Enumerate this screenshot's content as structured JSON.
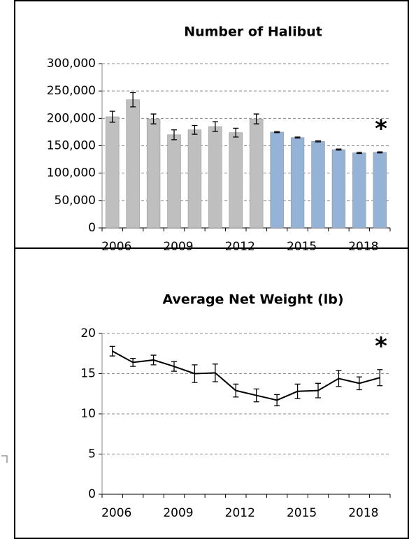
{
  "chart_data": [
    {
      "type": "bar",
      "title": "Number of Halibut",
      "categories": [
        "2006",
        null,
        null,
        "2009",
        null,
        null,
        "2012",
        null,
        null,
        "2015",
        null,
        null,
        "2018",
        null
      ],
      "values": [
        203000,
        234000,
        199000,
        170000,
        179000,
        185000,
        174000,
        199000,
        175000,
        165000,
        158000,
        143000,
        137000,
        138000
      ],
      "errors": [
        10000,
        13000,
        9000,
        9000,
        8000,
        9000,
        8000,
        9000,
        1000,
        1000,
        1000,
        1000,
        1000,
        1000
      ],
      "colors": [
        "#bfbfbf",
        "#bfbfbf",
        "#bfbfbf",
        "#bfbfbf",
        "#bfbfbf",
        "#bfbfbf",
        "#bfbfbf",
        "#bfbfbf",
        "#95b3d7",
        "#95b3d7",
        "#95b3d7",
        "#95b3d7",
        "#95b3d7",
        "#95b3d7"
      ],
      "ylim": [
        0,
        300000
      ],
      "yticks": [
        0,
        {
          "value": 50000,
          "label": "50,000"
        },
        {
          "value": 100000,
          "label": "100,000"
        },
        {
          "value": 150000,
          "label": "150,000"
        },
        {
          "value": 200000,
          "label": "200,000"
        },
        {
          "value": 250000,
          "label": "250,000"
        },
        {
          "value": 300000,
          "label": "300,000"
        }
      ],
      "grid": true,
      "annotation": "*"
    },
    {
      "type": "line",
      "title": "Average Net Weight (lb)",
      "categories": [
        "2006",
        null,
        null,
        "2009",
        null,
        null,
        "2012",
        null,
        null,
        "2015",
        null,
        null,
        "2018",
        null
      ],
      "values": [
        17.8,
        16.4,
        16.7,
        15.9,
        15.0,
        15.1,
        12.9,
        12.3,
        11.7,
        12.8,
        12.9,
        14.4,
        13.8,
        14.5
      ],
      "errors": [
        0.6,
        0.5,
        0.6,
        0.6,
        1.1,
        1.1,
        0.8,
        0.8,
        0.7,
        0.9,
        0.9,
        1.0,
        0.8,
        1.0
      ],
      "color": "#000000",
      "ylim": [
        0,
        20
      ],
      "yticks": [
        0,
        5,
        10,
        15,
        20
      ],
      "grid": true,
      "annotation": "*"
    }
  ]
}
